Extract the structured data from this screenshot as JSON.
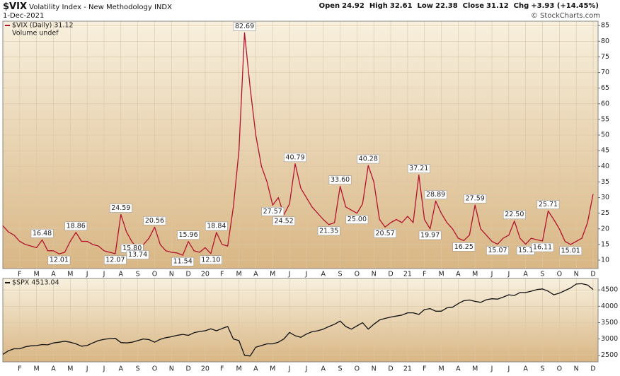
{
  "header": {
    "symbol": "$VIX",
    "name": "Volatility Index - New Methodology",
    "exchange": "INDX",
    "date": "1-Dec-2021",
    "quote": [
      {
        "label": "Open",
        "value": "24.92"
      },
      {
        "label": "High",
        "value": "32.61"
      },
      {
        "label": "Low",
        "value": "22.38"
      },
      {
        "label": "Close",
        "value": "31.12"
      },
      {
        "label": "Chg",
        "value": "+3.93 (+14.45%)"
      }
    ],
    "credit": "© StockCharts.com"
  },
  "chart_data": [
    {
      "type": "line",
      "note": "Volume undef",
      "categories": [
        null,
        null,
        null,
        "F",
        null,
        null,
        "M",
        null,
        null,
        "A",
        null,
        null,
        "M",
        null,
        null,
        "J",
        null,
        null,
        "J",
        null,
        null,
        "A",
        null,
        null,
        "S",
        null,
        null,
        "O",
        null,
        null,
        "N",
        null,
        null,
        "D",
        null,
        null,
        "20",
        null,
        null,
        "F",
        null,
        null,
        "M",
        null,
        null,
        "A",
        null,
        null,
        "M",
        null,
        null,
        "J",
        null,
        null,
        "J",
        null,
        null,
        "A",
        null,
        null,
        "S",
        null,
        null,
        "O",
        null,
        null,
        "N",
        null,
        null,
        "D",
        null,
        null,
        "21",
        null,
        null,
        "F",
        null,
        null,
        "M",
        null,
        null,
        "A",
        null,
        null,
        "M",
        null,
        null,
        "J",
        null,
        null,
        "J",
        null,
        null,
        "A",
        null,
        null,
        "S",
        null,
        null,
        "O",
        null,
        null,
        "N",
        null,
        null,
        "D"
      ],
      "series": [
        {
          "name": "$VIX (Daily) 31.12",
          "color": "#b3122e",
          "values": [
            21,
            19,
            18,
            16,
            15,
            14.5,
            14,
            16.48,
            13,
            13,
            12.01,
            12.5,
            16,
            18.86,
            16,
            16,
            15,
            14.5,
            13,
            12.5,
            12.07,
            24.59,
            19,
            15.8,
            13.74,
            15,
            17,
            20.56,
            15,
            13,
            12.5,
            12.3,
            11.54,
            15.96,
            13,
            12.5,
            14,
            12.1,
            18.84,
            15,
            14.5,
            27,
            45,
            82.69,
            65,
            50,
            40,
            35,
            27.57,
            30,
            24.52,
            28,
            40.79,
            33,
            30,
            27,
            25,
            23,
            21.35,
            22,
            33.6,
            27,
            26,
            25,
            28,
            40.28,
            35,
            23,
            20.57,
            22,
            23,
            22,
            24,
            22,
            37.21,
            23,
            19.97,
            28.89,
            25,
            22,
            20,
            17,
            16.25,
            18,
            27.59,
            20,
            18,
            16,
            15.07,
            17,
            18,
            22.5,
            17,
            15.1,
            17,
            16.5,
            16.11,
            25.71,
            23,
            20,
            16,
            15.01,
            16,
            17,
            22,
            31.12
          ],
          "value_labels": [
            null,
            null,
            null,
            null,
            null,
            null,
            null,
            "16.48",
            null,
            null,
            "12.01",
            null,
            null,
            "18.86",
            null,
            null,
            null,
            null,
            null,
            null,
            "12.07",
            "24.59",
            null,
            "15.80",
            "13.74",
            null,
            null,
            "20.56",
            null,
            null,
            null,
            null,
            "11.54",
            "15.96",
            null,
            null,
            null,
            "12.10",
            "18.84",
            null,
            null,
            null,
            null,
            "82.69",
            null,
            null,
            null,
            null,
            "27.57",
            null,
            "24.52",
            null,
            "40.79",
            null,
            null,
            null,
            null,
            null,
            "21.35",
            null,
            "33.60",
            null,
            null,
            "25.00",
            null,
            "40.28",
            null,
            null,
            "20.57",
            null,
            null,
            null,
            null,
            null,
            "37.21",
            null,
            "19.97",
            "28.89",
            null,
            null,
            null,
            null,
            "16.25",
            null,
            "27.59",
            null,
            null,
            null,
            "15.07",
            null,
            null,
            "22.50",
            null,
            "15.1",
            null,
            null,
            "16.11",
            "25.71",
            null,
            null,
            null,
            "15.01",
            null,
            null,
            null,
            null
          ]
        }
      ],
      "ylim": [
        7.3,
        86.4
      ],
      "yticks": [
        10,
        15,
        20,
        25,
        30,
        35,
        40,
        45,
        50,
        55,
        60,
        65,
        70,
        75,
        80,
        85
      ],
      "grid": true
    },
    {
      "type": "line",
      "categories": [
        null,
        null,
        null,
        "F",
        null,
        null,
        "M",
        null,
        null,
        "A",
        null,
        null,
        "M",
        null,
        null,
        "J",
        null,
        null,
        "J",
        null,
        null,
        "A",
        null,
        null,
        "S",
        null,
        null,
        "O",
        null,
        null,
        "N",
        null,
        null,
        "D",
        null,
        null,
        "20",
        null,
        null,
        "F",
        null,
        null,
        "M",
        null,
        null,
        "A",
        null,
        null,
        "M",
        null,
        null,
        "J",
        null,
        null,
        "J",
        null,
        null,
        "A",
        null,
        null,
        "S",
        null,
        null,
        "O",
        null,
        null,
        "N",
        null,
        null,
        "D",
        null,
        null,
        "21",
        null,
        null,
        "F",
        null,
        null,
        "M",
        null,
        null,
        "A",
        null,
        null,
        "M",
        null,
        null,
        "J",
        null,
        null,
        "J",
        null,
        null,
        "A",
        null,
        null,
        "S",
        null,
        null,
        "O",
        null,
        null,
        "N",
        null,
        null,
        "D"
      ],
      "series": [
        {
          "name": "$SPX 4513.04",
          "color": "#111111",
          "values": [
            2530,
            2640,
            2700,
            2700,
            2760,
            2790,
            2800,
            2830,
            2820,
            2880,
            2900,
            2930,
            2900,
            2850,
            2780,
            2800,
            2880,
            2950,
            2990,
            3010,
            3020,
            2890,
            2880,
            2900,
            2950,
            3000,
            2980,
            2900,
            2990,
            3040,
            3070,
            3110,
            3140,
            3110,
            3190,
            3230,
            3250,
            3310,
            3250,
            3320,
            3380,
            3000,
            2950,
            2500,
            2480,
            2750,
            2800,
            2850,
            2850,
            2900,
            3000,
            3200,
            3100,
            3050,
            3150,
            3220,
            3250,
            3300,
            3380,
            3450,
            3550,
            3380,
            3300,
            3400,
            3500,
            3300,
            3450,
            3580,
            3630,
            3670,
            3700,
            3730,
            3800,
            3800,
            3750,
            3900,
            3930,
            3850,
            3850,
            3950,
            3970,
            4080,
            4170,
            4190,
            4150,
            4120,
            4200,
            4230,
            4220,
            4280,
            4350,
            4330,
            4420,
            4420,
            4460,
            4510,
            4530,
            4460,
            4350,
            4400,
            4480,
            4560,
            4680,
            4690,
            4650,
            4513.04
          ]
        }
      ],
      "ylim": [
        2300,
        4850
      ],
      "yticks": [
        2500,
        3000,
        3500,
        4000,
        4500
      ],
      "grid": true
    }
  ]
}
